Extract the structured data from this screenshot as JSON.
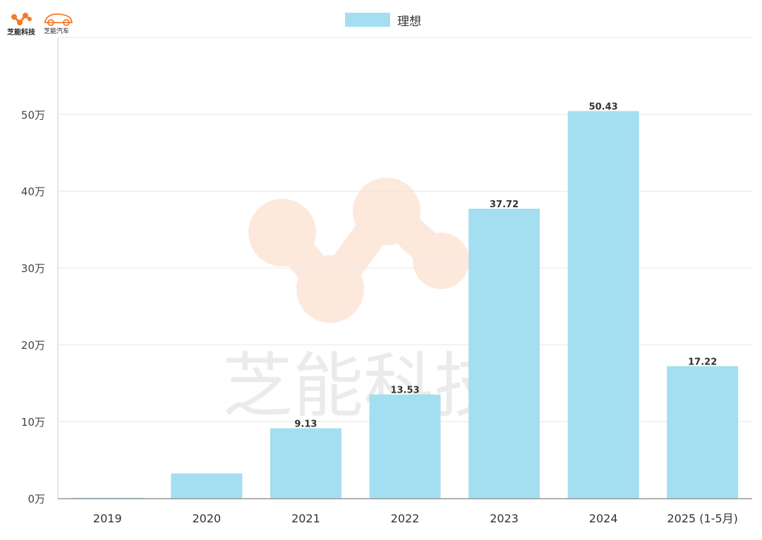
{
  "brand": {
    "logo_left_text": "芝能科技",
    "logo_right_text": "芝能汽车",
    "watermark_text": "芝能科技",
    "colors": {
      "orange": "#f47a2b",
      "bar": "#a3dff0"
    }
  },
  "chart_data": {
    "type": "bar",
    "categories": [
      "2019",
      "2020",
      "2021",
      "2022",
      "2023",
      "2024",
      "2025 (1-5月)"
    ],
    "series": [
      {
        "name": "理想",
        "values": [
          0.07,
          3.26,
          9.13,
          13.53,
          37.72,
          50.43,
          17.22
        ],
        "data_labels": [
          "",
          "",
          "9.13",
          "13.53",
          "37.72",
          "50.43",
          "17.22"
        ]
      }
    ],
    "y_ticks": [
      "0万",
      "10万",
      "20万",
      "30万",
      "40万",
      "50万"
    ],
    "y_tick_values": [
      0,
      10,
      20,
      30,
      40,
      50
    ],
    "ylim": [
      0,
      60
    ],
    "grid": true,
    "legend_position": "top-center",
    "xlabel": "",
    "ylabel": ""
  }
}
